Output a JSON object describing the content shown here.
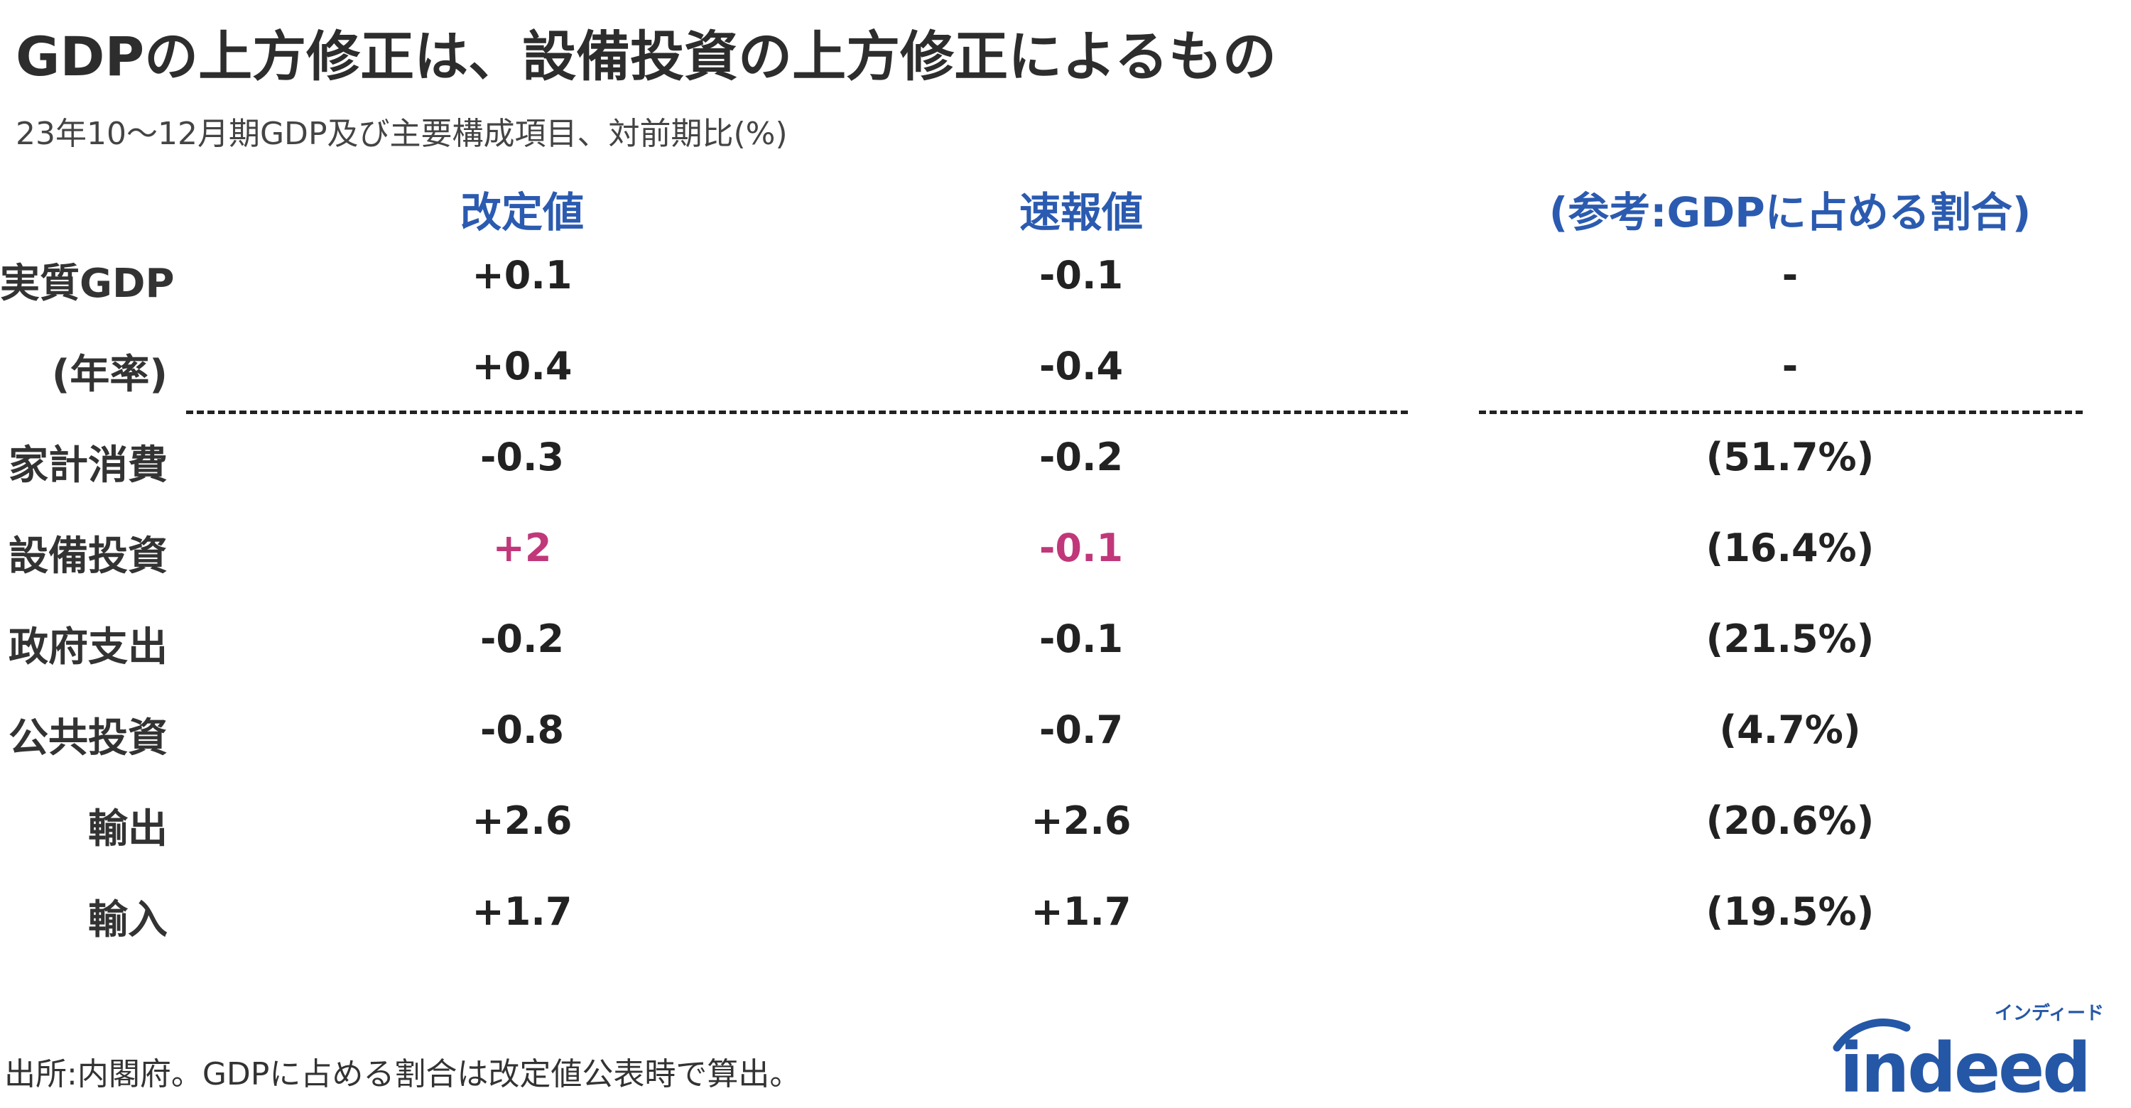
{
  "title": "GDPの上方修正は、設備投資の上方修正によるもの",
  "subtitle": "23年10〜12月期GDP及び主要構成項目、対前期比(%)",
  "colors": {
    "header": "#2b5bb0",
    "highlight": "#c0387a",
    "text": "#222222",
    "logo_blue": "#2557a7"
  },
  "chart_data": {
    "type": "table",
    "columns": [
      "改定値",
      "速報値",
      "(参考:GDPに占める割合)"
    ],
    "rows": [
      {
        "label": "実質GDP",
        "revised": "+0.1",
        "preliminary": "-0.1",
        "share": "-",
        "highlight": false
      },
      {
        "label": "(年率)",
        "revised": "+0.4",
        "preliminary": "-0.4",
        "share": "-",
        "highlight": false
      },
      {
        "label": "家計消費",
        "revised": "-0.3",
        "preliminary": "-0.2",
        "share": "(51.7%)",
        "highlight": false
      },
      {
        "label": "設備投資",
        "revised": "+2",
        "preliminary": "-0.1",
        "share": "(16.4%)",
        "highlight": true
      },
      {
        "label": "政府支出",
        "revised": "-0.2",
        "preliminary": "-0.1",
        "share": "(21.5%)",
        "highlight": false
      },
      {
        "label": "公共投資",
        "revised": "-0.8",
        "preliminary": "-0.7",
        "share": "(4.7%)",
        "highlight": false
      },
      {
        "label": "輸出",
        "revised": "+2.6",
        "preliminary": "+2.6",
        "share": "(20.6%)",
        "highlight": false
      },
      {
        "label": "輸入",
        "revised": "+1.7",
        "preliminary": "+1.7",
        "share": "(19.5%)",
        "highlight": false
      }
    ]
  },
  "source": "出所:内閣府。GDPに占める割合は改定値公表時で算出。",
  "logo": {
    "kana": "インディード",
    "word": "indeed"
  }
}
